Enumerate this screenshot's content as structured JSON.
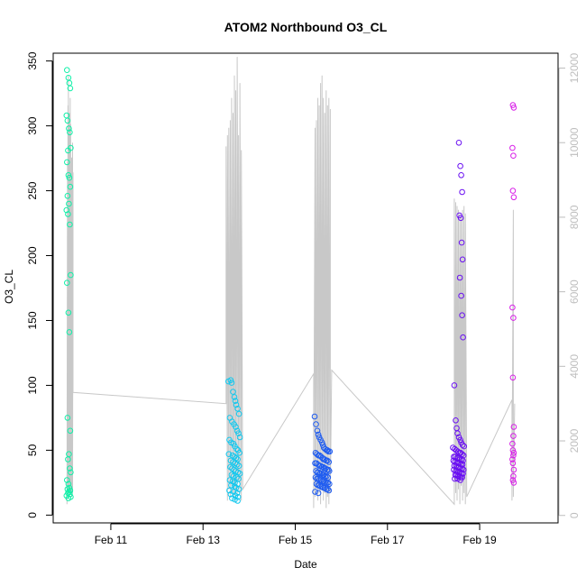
{
  "chart_data": {
    "type": "scatter",
    "title": "ATOM2 Northbound O3_CL",
    "xlabel": "Date",
    "ylabel": "O3_CL",
    "x_ticks": [
      "Feb 11",
      "Feb 13",
      "Feb 15",
      "Feb 17",
      "Feb 19"
    ],
    "x_tick_days": [
      11,
      13,
      15,
      17,
      19
    ],
    "xlim_days": [
      9.75,
      20.7
    ],
    "y_ticks": [
      0,
      50,
      100,
      150,
      200,
      250,
      300,
      350
    ],
    "ylim": [
      -6,
      356
    ],
    "y2_ticks": [
      0,
      2000,
      4000,
      6000,
      8000,
      10000,
      12000
    ],
    "y2lim": [
      -200,
      12400
    ],
    "grid": false,
    "colors": {
      "background": "#ffffff",
      "axis": "#000000",
      "secondary_axis": "#bebebe",
      "altitude_line": "#c8c8c8"
    },
    "series": [
      {
        "color": "#10f0a8",
        "x_days": [
          10.05,
          10.08,
          10.1,
          10.12,
          10.04,
          10.06,
          10.09,
          10.11,
          10.13,
          10.07,
          10.05,
          10.08,
          10.1,
          10.12,
          10.06,
          10.09,
          10.04,
          10.11,
          10.07,
          10.13,
          10.05,
          10.08,
          10.1,
          10.06,
          10.12,
          10.09,
          10.07,
          10.11,
          10.13,
          10.05,
          10.08,
          10.1,
          10.06,
          10.12,
          10.09,
          10.07,
          10.11,
          10.04,
          10.13,
          10.08
        ],
        "values": [
          343,
          337,
          333,
          329,
          308,
          304,
          298,
          295,
          283,
          281,
          272,
          262,
          260,
          253,
          246,
          240,
          235,
          224,
          232,
          185,
          179,
          156,
          141,
          75,
          65,
          47,
          43,
          36,
          33,
          27,
          24,
          21,
          20,
          19,
          18,
          17,
          16,
          15,
          14,
          13
        ]
      },
      {
        "color": "#13c8ee",
        "x_days": [
          13.55,
          13.6,
          13.62,
          13.65,
          13.68,
          13.7,
          13.72,
          13.75,
          13.78,
          13.58,
          13.63,
          13.67,
          13.71,
          13.74,
          13.77,
          13.8,
          13.57,
          13.61,
          13.66,
          13.69,
          13.73,
          13.76,
          13.79,
          13.56,
          13.64,
          13.68,
          13.72,
          13.75,
          13.6,
          13.65,
          13.7,
          13.74,
          13.78,
          13.59,
          13.63,
          13.67,
          13.71,
          13.76,
          13.8,
          13.62,
          13.66,
          13.73,
          13.77,
          13.58,
          13.64,
          13.69,
          13.75,
          13.61,
          13.68,
          13.72,
          13.78,
          13.57,
          13.66,
          13.74,
          13.6,
          13.7,
          13.76,
          13.63,
          13.69,
          13.75
        ],
        "values": [
          103,
          104,
          102,
          95,
          91,
          88,
          85,
          82,
          78,
          75,
          72,
          70,
          68,
          65,
          63,
          60,
          58,
          56,
          55,
          53,
          51,
          50,
          48,
          47,
          46,
          45,
          44,
          43,
          42,
          41,
          40,
          39,
          38,
          37,
          36,
          35,
          34,
          33,
          32,
          31,
          30,
          29,
          28,
          27,
          26,
          25,
          24,
          23,
          22,
          21,
          20,
          19,
          18,
          17,
          16,
          15,
          14,
          13,
          12,
          11
        ]
      },
      {
        "color": "#1f5cf0",
        "x_days": [
          15.42,
          15.45,
          15.48,
          15.5,
          15.52,
          15.55,
          15.58,
          15.6,
          15.62,
          15.65,
          15.68,
          15.7,
          15.72,
          15.75,
          15.44,
          15.47,
          15.5,
          15.53,
          15.56,
          15.59,
          15.61,
          15.64,
          15.67,
          15.7,
          15.73,
          15.43,
          15.46,
          15.49,
          15.52,
          15.55,
          15.58,
          15.61,
          15.63,
          15.66,
          15.69,
          15.72,
          15.74,
          15.45,
          15.48,
          15.51,
          15.54,
          15.57,
          15.6,
          15.62,
          15.65,
          15.68,
          15.71,
          15.44,
          15.47,
          15.5,
          15.53,
          15.56,
          15.59,
          15.62,
          15.65,
          15.68,
          15.71,
          15.74,
          15.46,
          15.49,
          15.52,
          15.55,
          15.58,
          15.61,
          15.64,
          15.67,
          15.7,
          15.73,
          15.43,
          15.5
        ],
        "values": [
          76,
          70,
          65,
          62,
          60,
          58,
          56,
          54,
          52,
          51,
          50,
          50,
          49,
          49,
          48,
          47,
          46,
          46,
          45,
          44,
          43,
          43,
          42,
          42,
          41,
          40,
          40,
          39,
          38,
          38,
          37,
          37,
          36,
          36,
          35,
          35,
          34,
          34,
          33,
          33,
          32,
          32,
          31,
          31,
          30,
          30,
          29,
          29,
          28,
          28,
          27,
          27,
          26,
          26,
          25,
          25,
          25,
          24,
          24,
          23,
          23,
          22,
          22,
          21,
          21,
          20,
          20,
          19,
          18,
          17
        ]
      },
      {
        "color": "#6a10f2",
        "x_days": [
          18.55,
          18.58,
          18.6,
          18.62,
          18.56,
          18.59,
          18.61,
          18.63,
          18.57,
          18.6,
          18.62,
          18.64,
          18.45,
          18.48,
          18.5,
          18.52,
          18.55,
          18.58,
          18.6,
          18.63,
          18.66,
          18.42,
          18.46,
          18.49,
          18.53,
          18.56,
          18.59,
          18.62,
          18.65,
          18.44,
          18.47,
          18.51,
          18.54,
          18.57,
          18.61,
          18.64,
          18.43,
          18.46,
          18.5,
          18.53,
          18.56,
          18.6,
          18.63,
          18.45,
          18.49,
          18.52,
          18.55,
          18.58,
          18.62,
          18.65,
          18.44,
          18.48,
          18.51,
          18.54,
          18.57,
          18.61,
          18.64,
          18.47,
          18.5,
          18.53,
          18.56,
          18.59,
          18.62,
          18.46,
          18.52,
          18.58
        ],
        "values": [
          287,
          269,
          262,
          249,
          231,
          229,
          210,
          197,
          183,
          169,
          154,
          137,
          100,
          73,
          67,
          63,
          60,
          58,
          56,
          54,
          53,
          52,
          51,
          50,
          49,
          48,
          48,
          47,
          46,
          45,
          45,
          44,
          44,
          43,
          43,
          42,
          42,
          41,
          41,
          40,
          40,
          39,
          39,
          38,
          38,
          37,
          37,
          36,
          36,
          35,
          35,
          34,
          34,
          33,
          33,
          32,
          32,
          31,
          31,
          30,
          30,
          29,
          29,
          28,
          28,
          27
        ]
      },
      {
        "color": "#d81ee8",
        "x_days": [
          19.72,
          19.74,
          19.71,
          19.73,
          19.72,
          19.74,
          19.71,
          19.73,
          19.72,
          19.74,
          19.73,
          19.71,
          19.72,
          19.74,
          19.73,
          19.71,
          19.72,
          19.74,
          19.73,
          19.72,
          19.74
        ],
        "values": [
          316,
          314,
          283,
          277,
          250,
          245,
          160,
          152,
          106,
          68,
          61,
          55,
          50,
          48,
          46,
          43,
          40,
          35,
          30,
          27,
          25
        ]
      }
    ],
    "altitude_series": {
      "axis": "right",
      "x_days": [
        10.05,
        10.06,
        10.06,
        10.07,
        10.07,
        10.08,
        10.08,
        10.09,
        10.09,
        10.1,
        10.1,
        10.11,
        10.11,
        10.12,
        10.12,
        10.13,
        10.13,
        10.14,
        10.14,
        10.15,
        10.15,
        10.16,
        10.16,
        10.17,
        10.17,
        10.18,
        10.18,
        13.5,
        13.5,
        13.53,
        13.53,
        13.56,
        13.56,
        13.59,
        13.59,
        13.62,
        13.62,
        13.65,
        13.65,
        13.68,
        13.68,
        13.71,
        13.71,
        13.74,
        13.74,
        13.77,
        13.77,
        13.8,
        13.8,
        13.83,
        13.83,
        13.86,
        15.4,
        15.4,
        15.43,
        15.43,
        15.46,
        15.46,
        15.49,
        15.49,
        15.52,
        15.52,
        15.55,
        15.55,
        15.58,
        15.58,
        15.61,
        15.61,
        15.64,
        15.64,
        15.67,
        15.67,
        15.7,
        15.7,
        15.73,
        15.73,
        15.76,
        15.76,
        15.79,
        18.45,
        18.45,
        18.48,
        18.48,
        18.51,
        18.51,
        18.54,
        18.54,
        18.57,
        18.57,
        18.6,
        18.6,
        18.63,
        18.63,
        18.66,
        18.66,
        18.69,
        18.69,
        18.72,
        19.7,
        19.7,
        19.73,
        19.73,
        19.76
      ],
      "values": [
        300,
        9500,
        700,
        11000,
        900,
        11800,
        600,
        10200,
        800,
        10800,
        500,
        9800,
        700,
        11200,
        1000,
        10500,
        600,
        9000,
        800,
        9600,
        500,
        8800,
        700,
        10000,
        600,
        9200,
        3300,
        3000,
        9900,
        400,
        10200,
        700,
        10400,
        500,
        10600,
        800,
        11200,
        600,
        10800,
        400,
        11800,
        700,
        11400,
        500,
        12300,
        900,
        10200,
        600,
        11600,
        400,
        9800,
        700,
        3800,
        200,
        10400,
        500,
        10600,
        700,
        11200,
        400,
        11000,
        600,
        11600,
        300,
        11800,
        800,
        11200,
        400,
        10800,
        600,
        11400,
        200,
        11000,
        500,
        11200,
        300,
        10900,
        600,
        3900,
        300,
        8500,
        600,
        8400,
        400,
        8300,
        700,
        8200,
        300,
        8100,
        800,
        8000,
        400,
        8200,
        600,
        8300,
        300,
        8100,
        500,
        3100,
        400,
        8200,
        500,
        3000
      ]
    }
  }
}
